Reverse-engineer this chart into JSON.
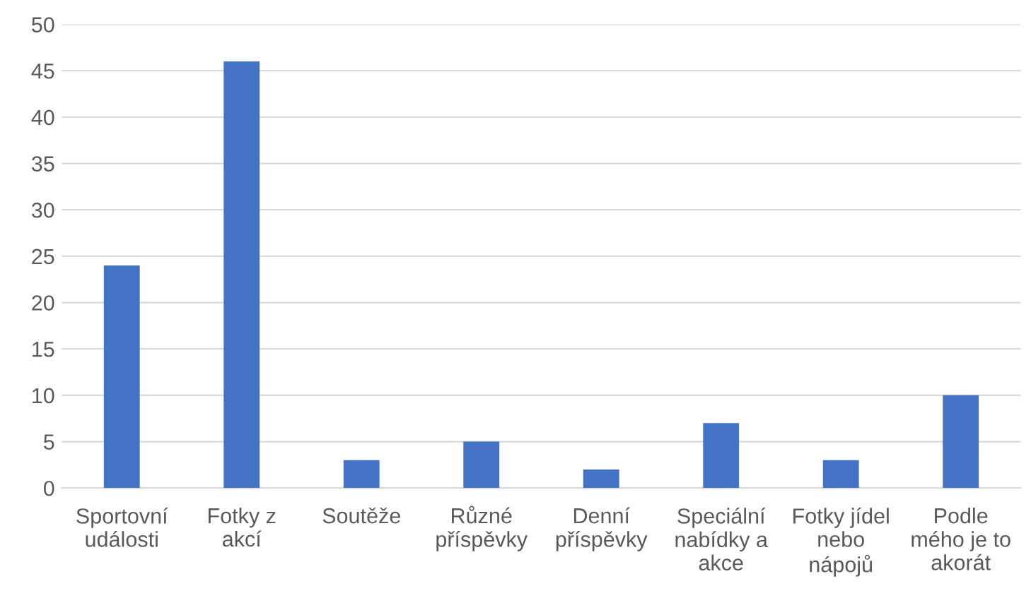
{
  "chart_data": {
    "type": "bar",
    "categories": [
      "Sportovní\nudálosti",
      "Fotky z\nakcí",
      "Soutěže",
      "Různé\npříspěvky",
      "Denní\npříspěvky",
      "Speciální\nnabídky a\nakce",
      "Fotky jídel\nnebo\nnápojů",
      "Podle\nmého je to\nakorát"
    ],
    "values": [
      24,
      46,
      3,
      5,
      2,
      7,
      3,
      10
    ],
    "color": "#4472c4",
    "ylim": [
      0,
      50
    ],
    "yticks": [
      0,
      5,
      10,
      15,
      20,
      25,
      30,
      35,
      40,
      45,
      50
    ],
    "grid": "y"
  }
}
